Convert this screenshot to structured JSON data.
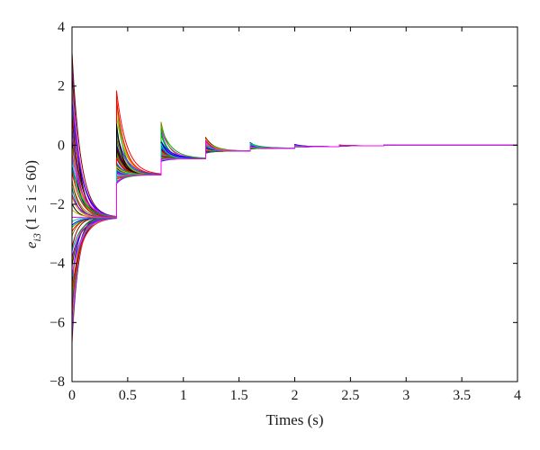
{
  "chart_data": {
    "type": "line",
    "title": "",
    "xlabel": "Times (s)",
    "ylabel": {
      "prefix": "e",
      "subscript": "i3",
      "condition": "(1 ≤ i ≤ 60)"
    },
    "xlim": [
      0,
      4
    ],
    "ylim": [
      -8,
      4
    ],
    "x_ticks": [
      0,
      0.5,
      1,
      1.5,
      2,
      2.5,
      3,
      3.5,
      4
    ],
    "x_tick_labels": [
      "0",
      "0.5",
      "1",
      "1.5",
      "2",
      "2.5",
      "3",
      "3.5",
      "4"
    ],
    "y_ticks": [
      -8,
      -6,
      -4,
      -2,
      0,
      2,
      4
    ],
    "y_tick_labels": [
      "−8",
      "−6",
      "−4",
      "−2",
      "0",
      "2",
      "4"
    ],
    "grid": false,
    "legend": "none",
    "series_count": 60,
    "initial_range": [
      -6.7,
      3.2
    ],
    "switch_times": [
      0.4,
      0.8,
      1.2,
      1.6,
      2.0,
      2.4,
      2.8
    ],
    "plateau_levels": [
      -2.45,
      -1.0,
      -0.45,
      -0.2,
      -0.1,
      -0.05,
      -0.02,
      0
    ],
    "reset_peaks": [
      1.95,
      0.8,
      0.3,
      0.1,
      0.03,
      0.01,
      0.005
    ],
    "reset_spread_below": [
      0.3,
      0.15,
      0.08,
      0.04,
      0.02,
      0.01,
      0.005
    ],
    "colors": [
      "#ff0000",
      "#00b400",
      "#0000ff",
      "#00c8c8",
      "#ff00ff",
      "#b4b400",
      "#000000",
      "#ff8000",
      "#8000ff",
      "#008080",
      "#800000",
      "#808000"
    ]
  }
}
